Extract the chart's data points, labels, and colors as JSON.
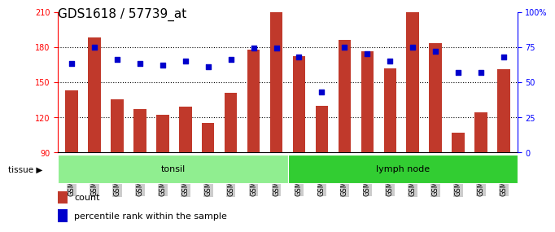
{
  "title": "GDS1618 / 57739_at",
  "categories": [
    "GSM51381",
    "GSM51382",
    "GSM51383",
    "GSM51384",
    "GSM51385",
    "GSM51386",
    "GSM51387",
    "GSM51388",
    "GSM51389",
    "GSM51390",
    "GSM51371",
    "GSM51372",
    "GSM51373",
    "GSM51374",
    "GSM51375",
    "GSM51376",
    "GSM51377",
    "GSM51378",
    "GSM51379",
    "GSM51380"
  ],
  "bar_values": [
    143,
    188,
    135,
    127,
    122,
    129,
    115,
    141,
    178,
    210,
    172,
    130,
    186,
    176,
    162,
    210,
    183,
    107,
    124,
    161
  ],
  "percentile_values": [
    63,
    75,
    66,
    63,
    62,
    65,
    61,
    66,
    74,
    74,
    68,
    43,
    75,
    70,
    65,
    75,
    72,
    57,
    57,
    68
  ],
  "ylim_left": [
    90,
    210
  ],
  "ylim_right": [
    0,
    100
  ],
  "bar_color": "#c0392b",
  "dot_color": "#0000cc",
  "group1_label": "tonsil",
  "group1_count": 10,
  "group2_label": "lymph node",
  "group2_count": 10,
  "group1_color": "#90ee90",
  "group2_color": "#32cd32",
  "plot_bg": "#ffffff",
  "xtick_bg": "#cccccc",
  "yticks_left": [
    90,
    120,
    150,
    180,
    210
  ],
  "yticks_right": [
    0,
    25,
    50,
    75,
    100
  ],
  "legend_count_label": "count",
  "legend_pct_label": "percentile rank within the sample",
  "title_fontsize": 11,
  "bar_fontsize": 6.5,
  "group_fontsize": 8,
  "legend_fontsize": 8
}
